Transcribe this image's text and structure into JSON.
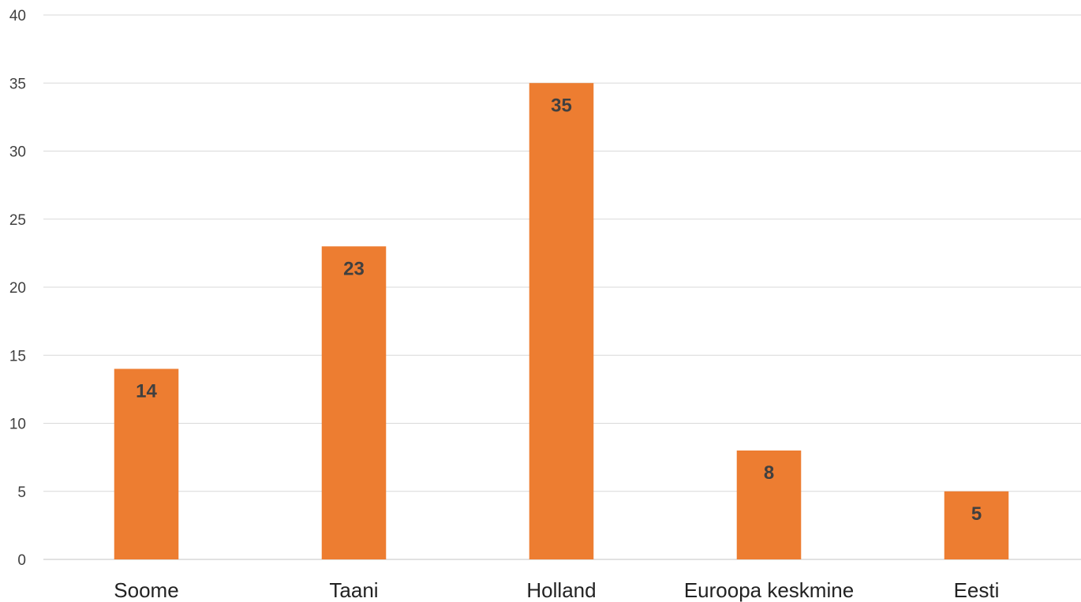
{
  "chart_data": {
    "type": "bar",
    "categories": [
      "Soome",
      "Taani",
      "Holland",
      "Euroopa keskmine",
      "Eesti"
    ],
    "values": [
      14,
      23,
      35,
      8,
      5
    ],
    "ylim": [
      0,
      40
    ],
    "yticks": [
      0,
      5,
      10,
      15,
      20,
      25,
      30,
      35,
      40
    ],
    "grid": true,
    "data_labels": true,
    "bar_color": "#ED7D31"
  }
}
